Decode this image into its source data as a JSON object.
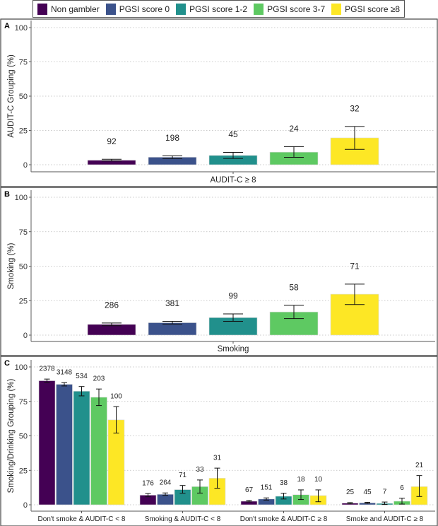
{
  "legend": {
    "items": [
      {
        "label": "Non gambler",
        "color": "#440154"
      },
      {
        "label": "PGSI score 0",
        "color": "#3b528b"
      },
      {
        "label": "PGSI score 1-2",
        "color": "#21908c"
      },
      {
        "label": "PGSI score 3-7",
        "color": "#5ec962"
      },
      {
        "label": "PGSI score ≥8",
        "color": "#fde725"
      }
    ]
  },
  "chart_data": [
    {
      "type": "bar",
      "panel": "A",
      "ylabel": "AUDIT-C Grouping (%)",
      "xlabel": "",
      "ylim": [
        0,
        100
      ],
      "yticks": [
        0,
        25,
        50,
        75,
        100
      ],
      "grid": true,
      "categories": [
        "AUDIT-C ≥ 8"
      ],
      "series": [
        {
          "name": "Non gambler",
          "values": [
            3.3
          ],
          "err_low": [
            2.7
          ],
          "err_high": [
            4.0
          ],
          "n": [
            "92"
          ]
        },
        {
          "name": "PGSI score 0",
          "values": [
            5.5
          ],
          "err_low": [
            4.5
          ],
          "err_high": [
            6.5
          ],
          "n": [
            "198"
          ]
        },
        {
          "name": "PGSI score 1-2",
          "values": [
            6.8
          ],
          "err_low": [
            4.6
          ],
          "err_high": [
            9.0
          ],
          "n": [
            "45"
          ]
        },
        {
          "name": "PGSI score 3-7",
          "values": [
            9.2
          ],
          "err_low": [
            5.4
          ],
          "err_high": [
            13.2
          ],
          "n": [
            "24"
          ]
        },
        {
          "name": "PGSI score ≥8",
          "values": [
            19.6
          ],
          "err_low": [
            11.2
          ],
          "err_high": [
            27.9
          ],
          "n": [
            "32"
          ]
        }
      ]
    },
    {
      "type": "bar",
      "panel": "B",
      "ylabel": "Smoking (%)",
      "xlabel": "",
      "ylim": [
        0,
        100
      ],
      "yticks": [
        0,
        25,
        50,
        75,
        100
      ],
      "grid": true,
      "categories": [
        "Smoking"
      ],
      "series": [
        {
          "name": "Non gambler",
          "values": [
            7.8
          ],
          "err_low": [
            6.8
          ],
          "err_high": [
            8.8
          ],
          "n": [
            "286"
          ]
        },
        {
          "name": "PGSI score 0",
          "values": [
            9.0
          ],
          "err_low": [
            8.0
          ],
          "err_high": [
            10.0
          ],
          "n": [
            "381"
          ]
        },
        {
          "name": "PGSI score 1-2",
          "values": [
            12.7
          ],
          "err_low": [
            10.0
          ],
          "err_high": [
            15.4
          ],
          "n": [
            "99"
          ]
        },
        {
          "name": "PGSI score 3-7",
          "values": [
            16.8
          ],
          "err_low": [
            12.0
          ],
          "err_high": [
            21.6
          ],
          "n": [
            "58"
          ]
        },
        {
          "name": "PGSI score ≥8",
          "values": [
            29.7
          ],
          "err_low": [
            22.2
          ],
          "err_high": [
            37.0
          ],
          "n": [
            "71"
          ]
        }
      ]
    },
    {
      "type": "bar",
      "panel": "C",
      "ylabel": "Smoking/Drinking Grouping (%)",
      "xlabel": "",
      "ylim": [
        0,
        100
      ],
      "yticks": [
        0,
        25,
        50,
        75,
        100
      ],
      "grid": true,
      "categories": [
        "Don't smoke & AUDIT-C < 8",
        "Smoking & AUDIT-C < 8",
        "Don't smoke & AUDIT-C ≥ 8",
        "Smoke and AUDIT-C ≥ 8"
      ],
      "series": [
        {
          "name": "Non gambler",
          "values": [
            90.0,
            7.0,
            2.6,
            1.2
          ],
          "err_low": [
            88.8,
            5.8,
            2.1,
            0.8
          ],
          "err_high": [
            91.2,
            8.2,
            3.2,
            1.6
          ],
          "n": [
            "2378",
            "176",
            "67",
            "25"
          ]
        },
        {
          "name": "PGSI score 0",
          "values": [
            87.4,
            7.6,
            4.2,
            1.4
          ],
          "err_low": [
            86.2,
            6.8,
            3.4,
            1.0
          ],
          "err_high": [
            88.6,
            8.6,
            5.0,
            1.8
          ],
          "n": [
            "3148",
            "264",
            "151",
            "45"
          ]
        },
        {
          "name": "PGSI score 1-2",
          "values": [
            82.4,
            11.0,
            6.2,
            1.0
          ],
          "err_low": [
            79.0,
            8.4,
            4.2,
            0.2
          ],
          "err_high": [
            85.8,
            14.0,
            8.4,
            2.0
          ],
          "n": [
            "534",
            "71",
            "38",
            "7"
          ]
        },
        {
          "name": "PGSI score 3-7",
          "values": [
            78.0,
            13.2,
            7.3,
            2.6
          ],
          "err_low": [
            72.0,
            8.5,
            3.8,
            0.5
          ],
          "err_high": [
            84.0,
            18.0,
            10.8,
            4.8
          ],
          "n": [
            "203",
            "33",
            "18",
            "6"
          ]
        },
        {
          "name": "PGSI score ≥8",
          "values": [
            61.6,
            19.3,
            6.7,
            13.2
          ],
          "err_low": [
            52.0,
            12.0,
            2.2,
            6.0
          ],
          "err_high": [
            71.2,
            26.6,
            10.8,
            21.2
          ],
          "n": [
            "100",
            "31",
            "10",
            "21"
          ]
        }
      ]
    }
  ]
}
